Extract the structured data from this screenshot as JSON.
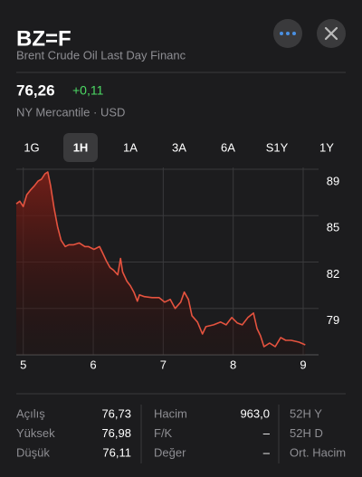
{
  "header": {
    "symbol": "BZ=F",
    "name": "Brent Crude Oil Last Day Financ"
  },
  "quote": {
    "price": "76,26",
    "change": "+0,11",
    "exchange": "NY Mercantile · USD"
  },
  "ranges": [
    "1G",
    "1H",
    "1A",
    "3A",
    "6A",
    "S1Y",
    "1Y"
  ],
  "chart_data": {
    "type": "line",
    "color": "#e5533f",
    "x": [
      4.9,
      4.95,
      5.0,
      5.05,
      5.1,
      5.16,
      5.21,
      5.26,
      5.31,
      5.35,
      5.39,
      5.44,
      5.49,
      5.54,
      5.6,
      5.65,
      5.72,
      5.8,
      5.88,
      5.93,
      6.01,
      6.09,
      6.14,
      6.19,
      6.24,
      6.29,
      6.35,
      6.39,
      6.42,
      6.48,
      6.53,
      6.58,
      6.63,
      6.66,
      6.73,
      6.84,
      6.94,
      7.02,
      7.1,
      7.17,
      7.25,
      7.3,
      7.36,
      7.41,
      7.49,
      7.56,
      7.61,
      7.72,
      7.82,
      7.9,
      7.98,
      8.06,
      8.13,
      8.21,
      8.29,
      8.34,
      8.39,
      8.44,
      8.52,
      8.6,
      8.68,
      8.75,
      8.83,
      8.94,
      9.03
    ],
    "values": [
      86.24,
      86.43,
      86.05,
      86.89,
      87.21,
      87.53,
      87.86,
      87.99,
      88.38,
      88.51,
      87.53,
      85.92,
      84.62,
      83.65,
      83.2,
      83.33,
      83.33,
      83.46,
      83.2,
      83.2,
      83.0,
      83.2,
      82.68,
      82.16,
      81.71,
      81.52,
      81.19,
      82.36,
      81.39,
      80.74,
      80.42,
      79.96,
      79.31,
      79.77,
      79.64,
      79.57,
      79.57,
      79.25,
      79.44,
      78.8,
      79.25,
      79.96,
      79.44,
      78.28,
      77.83,
      76.98,
      77.5,
      77.63,
      77.83,
      77.63,
      78.15,
      77.76,
      77.63,
      78.15,
      78.47,
      77.37,
      76.86,
      76.08,
      76.34,
      76.08,
      76.73,
      76.53,
      76.53,
      76.4,
      76.21
    ],
    "xlim": [
      4.9,
      9.22
    ],
    "xticks": [
      5,
      6,
      7,
      8,
      9
    ],
    "ylim": [
      75.5,
      88.83
    ],
    "yticks": [
      {
        "value": 88.7,
        "label": "89"
      },
      {
        "value": 85.4,
        "label": "85"
      },
      {
        "value": 82.1,
        "label": "82"
      },
      {
        "value": 78.8,
        "label": "79"
      }
    ],
    "grid": true
  },
  "stats": [
    [
      [
        "Açılış",
        "76,73"
      ],
      [
        "Hacim",
        "963,0"
      ],
      [
        "52H Y"
      ]
    ],
    [
      [
        "Yüksek",
        "76,98"
      ],
      [
        "F/K",
        "–"
      ],
      [
        "52H D"
      ]
    ],
    [
      [
        "Düşük",
        "76,11"
      ],
      [
        "Değer",
        "–"
      ],
      [
        "Ort. Hacim"
      ]
    ]
  ]
}
